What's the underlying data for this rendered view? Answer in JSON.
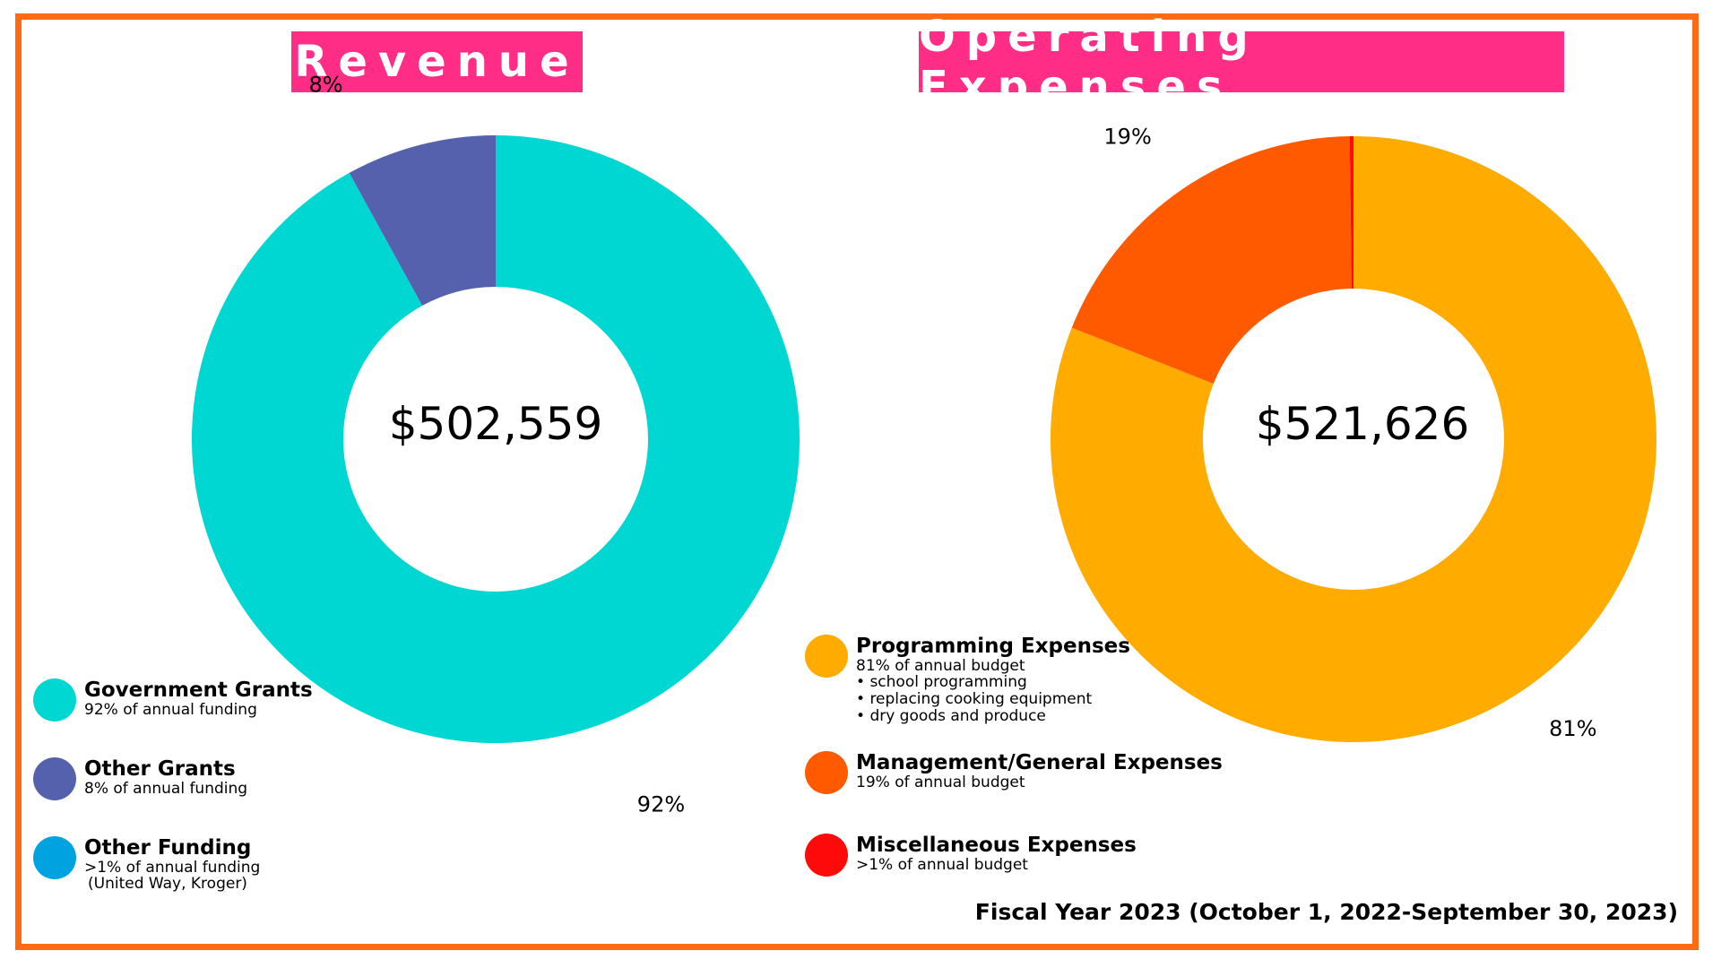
{
  "revenue": {
    "title": "Revenue",
    "total": "$502,559",
    "legend": [
      {
        "title": "Government Grants",
        "sub": "92% of annual funding",
        "color": "#00d6d2"
      },
      {
        "title": "Other Grants",
        "sub": "8% of annual funding",
        "color": "#5661ad"
      },
      {
        "title": "Other Funding",
        "sub": ">1% of annual funding",
        "sub2": "(United Way, Kroger)",
        "color": "#00a3e0"
      }
    ]
  },
  "expenses": {
    "title": "Operating Expenses",
    "total": "$521,626",
    "legend": [
      {
        "title": "Programming Expenses",
        "sub": "81% of annual budget",
        "bullets": [
          "school programming",
          "replacing cooking equipment",
          "dry goods and produce"
        ],
        "color": "#ffab00"
      },
      {
        "title": "Management/General Expenses",
        "sub": "19% of annual budget",
        "color": "#ff5a00"
      },
      {
        "title": "Miscellaneous Expenses",
        "sub": ">1% of annual budget",
        "color": "#ff0a0a"
      }
    ]
  },
  "footer": {
    "fiscal_year": "Fiscal Year 2023 (October 1, 2022-September 30, 2023)"
  },
  "chart_data": [
    {
      "type": "pie",
      "title": "Revenue",
      "center_label": "$502,559",
      "categories": [
        "Government Grants",
        "Other Grants"
      ],
      "values": [
        92,
        8
      ],
      "data_labels": [
        "92%",
        "8%"
      ],
      "colors": [
        "#00d6d2",
        "#5661ad"
      ]
    },
    {
      "type": "pie",
      "title": "Operating Expenses",
      "center_label": "$521,626",
      "categories": [
        "Programming Expenses",
        "Management/General Expenses",
        "Miscellaneous Expenses"
      ],
      "values": [
        81,
        18.8,
        0.2
      ],
      "data_labels": [
        "81%",
        "19%",
        ""
      ],
      "colors": [
        "#ffab00",
        "#ff5a00",
        "#ff0a0a"
      ]
    }
  ]
}
